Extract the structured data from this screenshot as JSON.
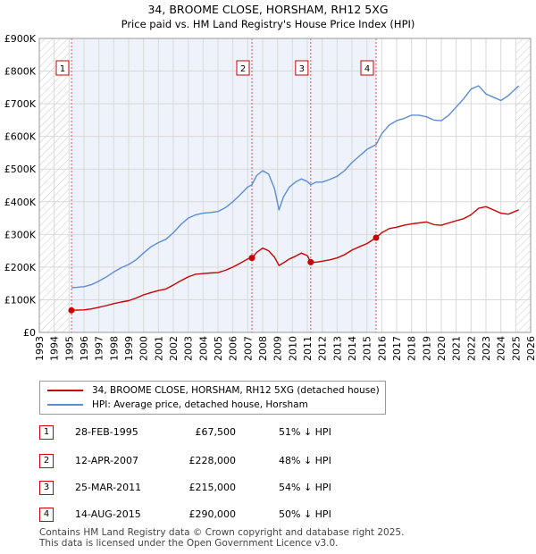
{
  "chart_data": {
    "type": "line",
    "title": "34, BROOME CLOSE, HORSHAM, RH12 5XG",
    "subtitle": "Price paid vs. HM Land Registry's House Price Index (HPI)",
    "xlim": [
      1993,
      2026
    ],
    "ylim": [
      0,
      900000
    ],
    "x_ticks": [
      "1993",
      "1994",
      "1995",
      "1996",
      "1997",
      "1998",
      "1999",
      "2000",
      "2001",
      "2002",
      "2003",
      "2004",
      "2005",
      "2006",
      "2007",
      "2008",
      "2009",
      "2010",
      "2011",
      "2012",
      "2013",
      "2014",
      "2015",
      "2016",
      "2017",
      "2018",
      "2019",
      "2020",
      "2021",
      "2022",
      "2023",
      "2024",
      "2025",
      "2026"
    ],
    "y_ticks": [
      {
        "value": 0,
        "label": "£0"
      },
      {
        "value": 100000,
        "label": "£100K"
      },
      {
        "value": 200000,
        "label": "£200K"
      },
      {
        "value": 300000,
        "label": "£300K"
      },
      {
        "value": 400000,
        "label": "£400K"
      },
      {
        "value": 500000,
        "label": "£500K"
      },
      {
        "value": 600000,
        "label": "£600K"
      },
      {
        "value": 700000,
        "label": "£700K"
      },
      {
        "value": 800000,
        "label": "£800K"
      },
      {
        "value": 900000,
        "label": "£900K"
      }
    ],
    "hatch_before": 1995.0,
    "hatch_after": 2025.0,
    "shade_start": 1995.16,
    "shade_end": 2015.62,
    "series": [
      {
        "name": "34, BROOME CLOSE, HORSHAM, RH12 5XG (detached house)",
        "color": "#cc0000",
        "x": [
          1995.16,
          1995.5,
          1996,
          1996.5,
          1997,
          1997.5,
          1998,
          1998.5,
          1999,
          1999.5,
          2000,
          2000.5,
          2001,
          2001.5,
          2002,
          2002.5,
          2003,
          2003.5,
          2004,
          2004.5,
          2005,
          2005.5,
          2006,
          2006.5,
          2007,
          2007.28,
          2007.6,
          2008,
          2008.4,
          2008.8,
          2009.1,
          2009.4,
          2009.8,
          2010.2,
          2010.6,
          2011,
          2011.23,
          2011.6,
          2012,
          2012.5,
          2013,
          2013.5,
          2014,
          2014.5,
          2015,
          2015.62,
          2016,
          2016.5,
          2017,
          2017.5,
          2018,
          2018.5,
          2019,
          2019.5,
          2020,
          2020.5,
          2021,
          2021.5,
          2022,
          2022.5,
          2023,
          2023.5,
          2024,
          2024.5,
          2025.2
        ],
        "y": [
          67500,
          68000,
          69000,
          72000,
          77000,
          82000,
          88000,
          93000,
          97000,
          105000,
          115000,
          122000,
          128000,
          133000,
          145000,
          158000,
          170000,
          178000,
          180000,
          182000,
          183000,
          190000,
          200000,
          212000,
          225000,
          228000,
          245000,
          258000,
          250000,
          230000,
          205000,
          213000,
          225000,
          233000,
          243000,
          235000,
          215000,
          215000,
          218000,
          222000,
          228000,
          238000,
          252000,
          262000,
          272000,
          290000,
          305000,
          318000,
          322000,
          328000,
          332000,
          335000,
          338000,
          330000,
          328000,
          335000,
          342000,
          348000,
          360000,
          380000,
          385000,
          375000,
          365000,
          362000,
          375000
        ]
      },
      {
        "name": "HPI: Average price, detached house, Horsham",
        "color": "#5b8dd6",
        "x": [
          1995.16,
          1995.5,
          1996,
          1996.5,
          1997,
          1997.5,
          1998,
          1998.5,
          1999,
          1999.5,
          2000,
          2000.5,
          2001,
          2001.5,
          2002,
          2002.5,
          2003,
          2003.5,
          2004,
          2004.5,
          2005,
          2005.5,
          2006,
          2006.5,
          2007,
          2007.28,
          2007.6,
          2008,
          2008.4,
          2008.8,
          2009.1,
          2009.4,
          2009.8,
          2010.2,
          2010.6,
          2011,
          2011.23,
          2011.6,
          2012,
          2012.5,
          2013,
          2013.5,
          2014,
          2014.5,
          2015,
          2015.62,
          2016,
          2016.5,
          2017,
          2017.5,
          2018,
          2018.5,
          2019,
          2019.5,
          2020,
          2020.5,
          2021,
          2021.5,
          2022,
          2022.5,
          2023,
          2023.5,
          2024,
          2024.5,
          2025.2
        ],
        "y": [
          137000,
          138000,
          140000,
          146000,
          157000,
          170000,
          185000,
          198000,
          208000,
          222000,
          243000,
          262000,
          275000,
          285000,
          305000,
          330000,
          350000,
          360000,
          365000,
          367000,
          370000,
          382000,
          400000,
          422000,
          445000,
          452000,
          480000,
          495000,
          485000,
          440000,
          375000,
          415000,
          445000,
          460000,
          470000,
          462000,
          452000,
          460000,
          460000,
          468000,
          478000,
          495000,
          520000,
          540000,
          560000,
          575000,
          608000,
          635000,
          648000,
          655000,
          665000,
          665000,
          660000,
          650000,
          648000,
          665000,
          690000,
          715000,
          745000,
          755000,
          730000,
          720000,
          710000,
          725000,
          755000
        ]
      }
    ],
    "sales": [
      {
        "id": "1",
        "x": 1995.16,
        "price": 67500
      },
      {
        "id": "2",
        "x": 2007.28,
        "price": 228000
      },
      {
        "id": "3",
        "x": 2011.23,
        "price": 215000
      },
      {
        "id": "4",
        "x": 2015.62,
        "price": 290000
      }
    ]
  },
  "legend": {
    "property": "34, BROOME CLOSE, HORSHAM, RH12 5XG (detached house)",
    "hpi": "HPI: Average price, detached house, Horsham"
  },
  "sales_table": [
    {
      "num": "1",
      "date": "28-FEB-1995",
      "price": "£67,500",
      "hpi": "51% ↓ HPI"
    },
    {
      "num": "2",
      "date": "12-APR-2007",
      "price": "£228,000",
      "hpi": "48% ↓ HPI"
    },
    {
      "num": "3",
      "date": "25-MAR-2011",
      "price": "£215,000",
      "hpi": "54% ↓ HPI"
    },
    {
      "num": "4",
      "date": "14-AUG-2015",
      "price": "£290,000",
      "hpi": "50% ↓ HPI"
    }
  ],
  "footer": {
    "line1": "Contains HM Land Registry data © Crown copyright and database right 2025.",
    "line2": "This data is licensed under the Open Government Licence v3.0."
  },
  "colors": {
    "property": "#cc0000",
    "hpi": "#5b8dd6",
    "shade": "#eef2fb",
    "grid": "#d9d9d9"
  }
}
